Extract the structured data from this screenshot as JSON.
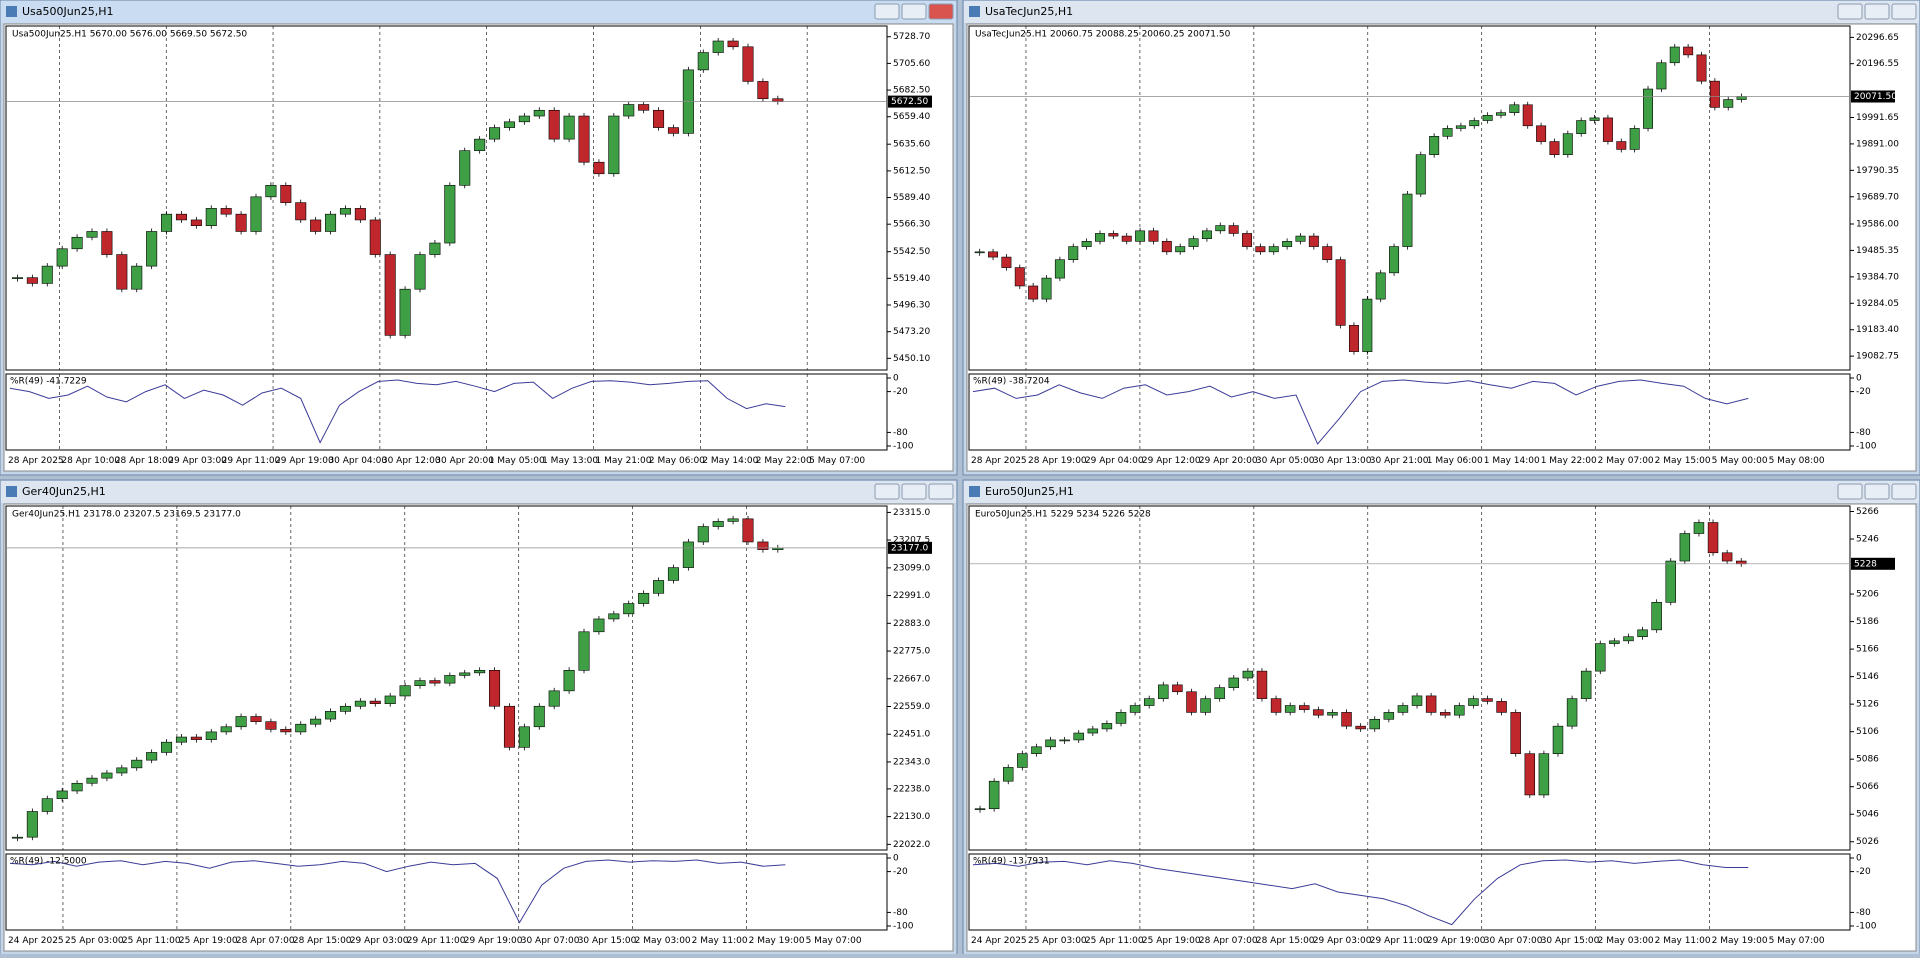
{
  "chart_data": [
    {
      "type": "candlestick",
      "window_title": "Usa500Jun25,H1",
      "active": true,
      "title": "Usa500Jun25.H1  5670.00 5676.00 5669.50 5672.50",
      "ylim": [
        5440,
        5738
      ],
      "yticks": [
        {
          "value": 5728.7,
          "label": "5728.70"
        },
        {
          "value": 5705.6,
          "label": "5705.60"
        },
        {
          "value": 5682.5,
          "label": "5682.50"
        },
        {
          "value": 5659.4,
          "label": "5659.40"
        },
        {
          "value": 5635.6,
          "label": "5635.60"
        },
        {
          "value": 5612.5,
          "label": "5612.50"
        },
        {
          "value": 5589.4,
          "label": "5589.40"
        },
        {
          "value": 5566.3,
          "label": "5566.30"
        },
        {
          "value": 5542.5,
          "label": "5542.50"
        },
        {
          "value": 5519.4,
          "label": "5519.40"
        },
        {
          "value": 5496.3,
          "label": "5496.30"
        },
        {
          "value": 5473.2,
          "label": "5473.20"
        },
        {
          "value": 5450.1,
          "label": "5450.10"
        }
      ],
      "last_price": {
        "value": 5672.5,
        "label": "5672.50"
      },
      "x_labels": [
        "28 Apr 2025",
        "28 Apr 10:00",
        "28 Apr 18:00",
        "29 Apr 03:00",
        "29 Apr 11:00",
        "29 Apr 19:00",
        "30 Apr 04:00",
        "30 Apr 12:00",
        "30 Apr 20:00",
        "1 May 05:00",
        "1 May 13:00",
        "1 May 21:00",
        "2 May 06:00",
        "2 May 14:00",
        "2 May 22:00",
        "5 May 07:00"
      ],
      "values": [
        5520,
        5515,
        5530,
        5545,
        5555,
        5560,
        5540,
        5510,
        5530,
        5560,
        5575,
        5570,
        5565,
        5580,
        5575,
        5560,
        5590,
        5600,
        5585,
        5570,
        5560,
        5575,
        5580,
        5570,
        5540,
        5470,
        5510,
        5540,
        5550,
        5600,
        5630,
        5640,
        5650,
        5655,
        5660,
        5665,
        5640,
        5660,
        5620,
        5610,
        5660,
        5670,
        5665,
        5650,
        5645,
        5700,
        5715,
        5725,
        5720,
        5690,
        5675,
        5672.5
      ],
      "indicator": {
        "label": "%R(49) -41.7229",
        "ylim": [
          -100,
          0
        ],
        "yticks": [
          0,
          -20,
          -80,
          -100
        ],
        "values": [
          -15,
          -20,
          -30,
          -25,
          -12,
          -28,
          -35,
          -20,
          -10,
          -30,
          -18,
          -25,
          -40,
          -22,
          -15,
          -30,
          -95,
          -40,
          -20,
          -5,
          -3,
          -8,
          -10,
          -5,
          -12,
          -20,
          -8,
          -6,
          -30,
          -15,
          -5,
          -4,
          -6,
          -10,
          -8,
          -5,
          -4,
          -30,
          -45,
          -38,
          -42
        ]
      },
      "up_color": "#3f9f45",
      "down_color": "#c0272d",
      "line_color": "#3b3b98"
    },
    {
      "type": "candlestick",
      "window_title": "UsaTecJun25,H1",
      "active": false,
      "title": "UsaTecJun25.H1  20060.75 20088.25 20060.25 20071.50",
      "ylim": [
        19030,
        20340
      ],
      "yticks": [
        {
          "value": 20296.65,
          "label": "20296.65"
        },
        {
          "value": 20196.55,
          "label": "20196.55"
        },
        {
          "value": 19991.65,
          "label": "19991.65"
        },
        {
          "value": 19891,
          "label": "19891.00"
        },
        {
          "value": 19790.35,
          "label": "19790.35"
        },
        {
          "value": 19689.7,
          "label": "19689.70"
        },
        {
          "value": 19586,
          "label": "19586.00"
        },
        {
          "value": 19485.35,
          "label": "19485.35"
        },
        {
          "value": 19384.7,
          "label": "19384.70"
        },
        {
          "value": 19284.05,
          "label": "19284.05"
        },
        {
          "value": 19183.4,
          "label": "19183.40"
        },
        {
          "value": 19082.75,
          "label": "19082.75"
        }
      ],
      "last_price": {
        "value": 20071.5,
        "label": "20071.50"
      },
      "x_labels": [
        "28 Apr 2025",
        "28 Apr 19:00",
        "29 Apr 04:00",
        "29 Apr 12:00",
        "29 Apr 20:00",
        "30 Apr 05:00",
        "30 Apr 13:00",
        "30 Apr 21:00",
        "1 May 06:00",
        "1 May 14:00",
        "1 May 22:00",
        "2 May 07:00",
        "2 May 15:00",
        "5 May 00:00",
        "5 May 08:00"
      ],
      "values": [
        19480,
        19460,
        19420,
        19350,
        19300,
        19380,
        19450,
        19500,
        19520,
        19550,
        19540,
        19520,
        19560,
        19520,
        19480,
        19500,
        19530,
        19560,
        19580,
        19550,
        19500,
        19480,
        19500,
        19520,
        19540,
        19500,
        19450,
        19200,
        19100,
        19300,
        19400,
        19500,
        19700,
        19850,
        19920,
        19950,
        19960,
        19980,
        20000,
        20010,
        20040,
        19960,
        19900,
        19850,
        19930,
        19980,
        19990,
        19900,
        19870,
        19950,
        20100,
        20200,
        20260,
        20230,
        20130,
        20030,
        20060,
        20071.5
      ],
      "indicator": {
        "label": "%R(49) -38.7204",
        "ylim": [
          -100,
          0
        ],
        "yticks": [
          0,
          -20,
          -80,
          -100
        ],
        "values": [
          -20,
          -15,
          -30,
          -25,
          -10,
          -22,
          -30,
          -15,
          -10,
          -25,
          -20,
          -12,
          -28,
          -20,
          -30,
          -25,
          -97,
          -60,
          -20,
          -5,
          -3,
          -6,
          -8,
          -4,
          -10,
          -15,
          -5,
          -8,
          -25,
          -12,
          -5,
          -3,
          -8,
          -12,
          -30,
          -38,
          -30
        ]
      },
      "up_color": "#3f9f45",
      "down_color": "#c0272d",
      "line_color": "#3b3b98"
    },
    {
      "type": "candlestick",
      "window_title": "Ger40Jun25,H1",
      "active": false,
      "title": "Ger40Jun25.H1  23178.0 23207.5 23169.5 23177.0",
      "ylim": [
        22000,
        23340
      ],
      "yticks": [
        {
          "value": 23315,
          "label": "23315.0"
        },
        {
          "value": 23207.5,
          "label": "23207.5"
        },
        {
          "value": 23099,
          "label": "23099.0"
        },
        {
          "value": 22991,
          "label": "22991.0"
        },
        {
          "value": 22883,
          "label": "22883.0"
        },
        {
          "value": 22775,
          "label": "22775.0"
        },
        {
          "value": 22667,
          "label": "22667.0"
        },
        {
          "value": 22559,
          "label": "22559.0"
        },
        {
          "value": 22451,
          "label": "22451.0"
        },
        {
          "value": 22343,
          "label": "22343.0"
        },
        {
          "value": 22238,
          "label": "22238.0"
        },
        {
          "value": 22130,
          "label": "22130.0"
        },
        {
          "value": 22022,
          "label": "22022.0"
        }
      ],
      "last_price": {
        "value": 23177,
        "label": "23177.0"
      },
      "x_labels": [
        "24 Apr 2025",
        "25 Apr 03:00",
        "25 Apr 11:00",
        "25 Apr 19:00",
        "28 Apr 07:00",
        "28 Apr 15:00",
        "29 Apr 03:00",
        "29 Apr 11:00",
        "29 Apr 19:00",
        "30 Apr 07:00",
        "30 Apr 15:00",
        "2 May 03:00",
        "2 May 11:00",
        "2 May 19:00",
        "5 May 07:00"
      ],
      "values": [
        22050,
        22150,
        22200,
        22230,
        22260,
        22280,
        22300,
        22320,
        22350,
        22380,
        22420,
        22440,
        22430,
        22460,
        22480,
        22520,
        22500,
        22470,
        22460,
        22490,
        22510,
        22540,
        22560,
        22580,
        22570,
        22600,
        22640,
        22660,
        22650,
        22680,
        22690,
        22700,
        22560,
        22400,
        22480,
        22560,
        22620,
        22700,
        22850,
        22900,
        22920,
        22960,
        23000,
        23050,
        23100,
        23200,
        23260,
        23280,
        23290,
        23200,
        23170,
        23177
      ],
      "indicator": {
        "label": "%R(49) -12.5000",
        "ylim": [
          -100,
          0
        ],
        "yticks": [
          0,
          -20,
          -80,
          -100
        ],
        "values": [
          -8,
          -10,
          -5,
          -12,
          -6,
          -4,
          -10,
          -5,
          -8,
          -15,
          -6,
          -4,
          -8,
          -12,
          -10,
          -5,
          -8,
          -20,
          -12,
          -6,
          -10,
          -8,
          -30,
          -95,
          -40,
          -15,
          -5,
          -3,
          -6,
          -4,
          -5,
          -3,
          -8,
          -6,
          -12,
          -10
        ]
      },
      "up_color": "#3f9f45",
      "down_color": "#c0272d",
      "line_color": "#3b3b98"
    },
    {
      "type": "candlestick",
      "window_title": "Euro50Jun25,H1",
      "active": false,
      "title": "Euro50Jun25.H1  5229 5234 5226 5228",
      "ylim": [
        5020,
        5270
      ],
      "yticks": [
        5266,
        5246,
        5206,
        5186,
        5166,
        5146,
        5126,
        5106,
        5086,
        5066,
        5046,
        5026
      ],
      "last_price": {
        "value": 5228,
        "label": "5228"
      },
      "x_labels": [
        "24 Apr 2025",
        "25 Apr 03:00",
        "25 Apr 11:00",
        "25 Apr 19:00",
        "28 Apr 07:00",
        "28 Apr 15:00",
        "29 Apr 03:00",
        "29 Apr 11:00",
        "29 Apr 19:00",
        "30 Apr 07:00",
        "30 Apr 15:00",
        "2 May 03:00",
        "2 May 11:00",
        "2 May 19:00",
        "5 May 07:00"
      ],
      "values": [
        5050,
        5070,
        5080,
        5090,
        5095,
        5100,
        5100,
        5105,
        5108,
        5112,
        5120,
        5125,
        5130,
        5140,
        5135,
        5120,
        5130,
        5138,
        5145,
        5150,
        5130,
        5120,
        5125,
        5122,
        5118,
        5120,
        5110,
        5108,
        5115,
        5120,
        5125,
        5132,
        5120,
        5118,
        5125,
        5130,
        5128,
        5120,
        5090,
        5060,
        5090,
        5110,
        5130,
        5150,
        5170,
        5172,
        5175,
        5180,
        5200,
        5230,
        5250,
        5258,
        5236,
        5230,
        5228
      ],
      "indicator": {
        "label": "%R(49) -13.7931",
        "ylim": [
          -100,
          0
        ],
        "yticks": [
          0,
          -20,
          -80,
          -100
        ],
        "values": [
          -10,
          -8,
          -12,
          -6,
          -5,
          -10,
          -4,
          -8,
          -15,
          -20,
          -25,
          -30,
          -35,
          -40,
          -45,
          -38,
          -50,
          -55,
          -60,
          -70,
          -85,
          -98,
          -60,
          -30,
          -10,
          -4,
          -3,
          -6,
          -4,
          -8,
          -5,
          -3,
          -10,
          -14,
          -14
        ]
      },
      "up_color": "#3f9f45",
      "down_color": "#c0272d",
      "line_color": "#3b3b98"
    }
  ]
}
